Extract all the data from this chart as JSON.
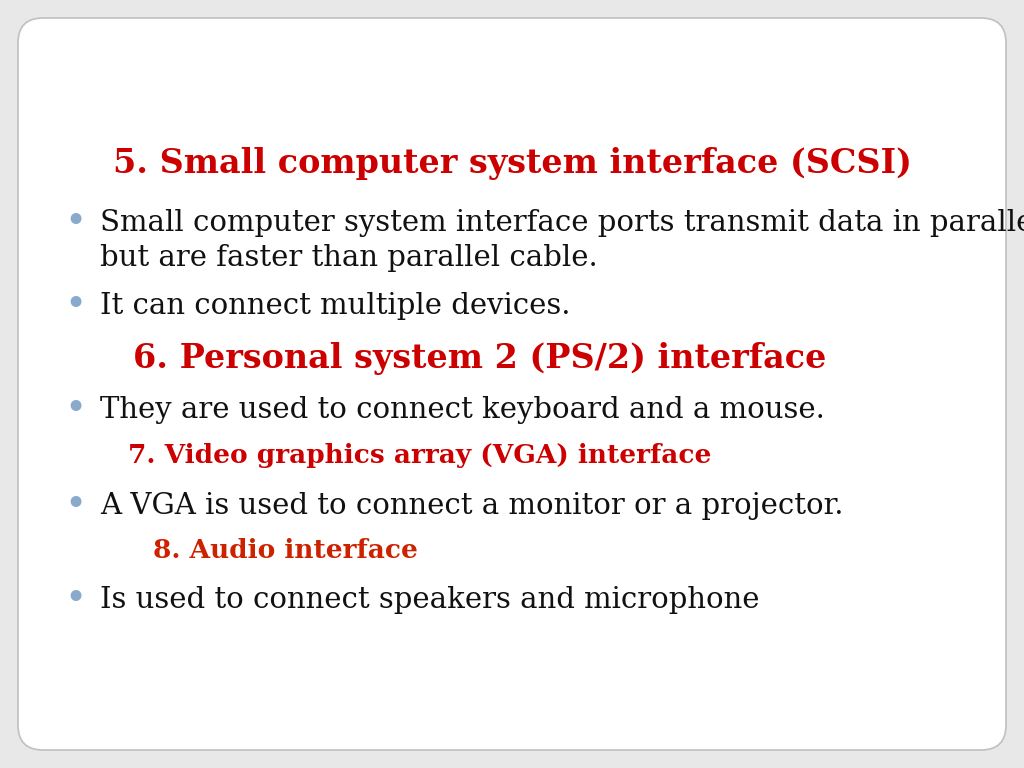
{
  "background_color": "#e8e8e8",
  "slide_bg": "#ffffff",
  "title1": "5. Small computer system interface (SCSI)",
  "title1_color": "#cc0000",
  "title1_fontsize": 24,
  "title2": "6. Personal system 2 (PS/2) interface",
  "title2_color": "#cc0000",
  "title2_fontsize": 24,
  "title3": "7. Video graphics array (VGA) interface",
  "title3_color": "#cc0000",
  "title3_fontsize": 19,
  "title4": "8. Audio interface",
  "title4_color": "#cc2200",
  "title4_fontsize": 19,
  "bullet_color": "#8aaacc",
  "bullet_fontsize": 21,
  "text_color": "#111111",
  "bullet1_line1": "Small computer system interface ports transmit data in parallel",
  "bullet1_line2": "but are faster than parallel cable.",
  "bullet2": "It can connect multiple devices.",
  "bullet3": "They are used to connect keyboard and a mouse.",
  "bullet4": "A VGA is used to connect a monitor or a projector.",
  "bullet5": "Is used to connect speakers and microphone"
}
